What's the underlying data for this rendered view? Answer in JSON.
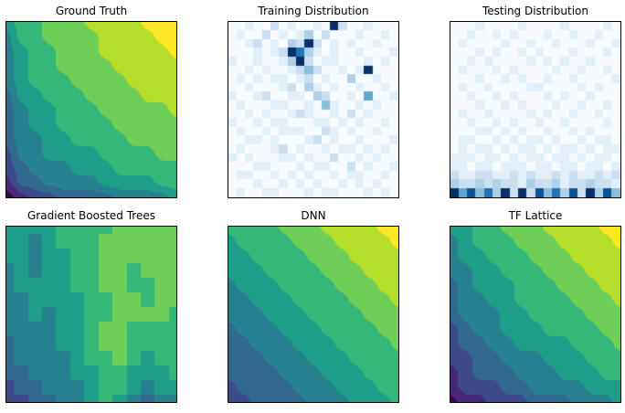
{
  "figure": {
    "background": "#ffffff",
    "panel_border_color": "#000000",
    "layout": "2 rows x 3 columns",
    "axis_ticks": "none"
  },
  "palettes": {
    "viridis": [
      "#440154",
      "#482878",
      "#3e4989",
      "#31688e",
      "#26828e",
      "#1f9e89",
      "#35b779",
      "#6ece58",
      "#b5de2b",
      "#fde725"
    ],
    "blues": [
      "#f7fbff",
      "#e2eef8",
      "#ccdff1",
      "#afd1e7",
      "#89bedc",
      "#60a6d2",
      "#3e8ec4",
      "#2172b6",
      "#0a549e",
      "#08306b"
    ]
  },
  "chart_data": [
    {
      "id": "ground-truth",
      "title": "Ground Truth",
      "type": "heatmap",
      "subtype": "filled-contour",
      "colormap": "viridis",
      "render": "smooth",
      "value_scale": [
        0,
        9
      ],
      "ticks": "none",
      "grid": [
        "5667778888999",
        "4667777888899",
        "4566777888889",
        "4566777788888",
        "4566677778888",
        "3556667777888",
        "3455666777778",
        "3455666677777",
        "3445566667777",
        "2445555666677",
        "2344455566666",
        "1334444555566",
        "0122333344445"
      ]
    },
    {
      "id": "training-distribution",
      "title": "Training Distribution",
      "type": "heatmap",
      "subtype": "2d-histogram",
      "colormap": "blues",
      "render": "cells",
      "value_scale": [
        0,
        9
      ],
      "ticks": "none",
      "grid": [
        "00100201001092001000",
        "01002010130200010010",
        "00120103292010100100",
        "00010129731010010001",
        "10010013920110001010",
        "00101001242001019000",
        "01010110120100300100",
        "00100012031010010010",
        "10012001103200105001",
        "01000110010410010100",
        "00101001210010201000",
        "10010110001101010010",
        "01001011100210100100",
        "00110100012010010001",
        "01000120100101101010",
        "10100011010020010100",
        "00011000101100201001",
        "01100101010010110010",
        "00010010101001010100",
        "01001100010110001010"
      ]
    },
    {
      "id": "testing-distribution",
      "title": "Testing Distribution",
      "type": "heatmap",
      "subtype": "2d-histogram",
      "colormap": "blues",
      "render": "cells",
      "value_scale": [
        0,
        9
      ],
      "ticks": "none",
      "grid": [
        "00010000100001000010",
        "00100101000100100100",
        "01000010010010001001",
        "00010100101000100010",
        "00101000010101001000",
        "01000101000010010010",
        "00010010100100100001",
        "01001000011000010100",
        "00100101000101001000",
        "00010010100010010010",
        "01001000010100100100",
        "00100101001001000010",
        "00011010100100101000",
        "01100101011010010110",
        "01011010110101101011",
        "11101101011011010110",
        "11011011101101101101",
        "21122112121121211212",
        "32232322132231223221",
        "95847392928473829384"
      ]
    },
    {
      "id": "gradient-boosted-trees",
      "title": "Gradient Boosted Trees",
      "type": "heatmap",
      "subtype": "filled-contour-blocky",
      "colormap": "viridis",
      "render": "nearest",
      "value_scale": [
        0,
        9
      ],
      "ticks": "none",
      "grid": [
        "5555666677777",
        "5545666777777",
        "5545566777777",
        "4545566776777",
        "4555566776677",
        "4455556677677",
        "4454556677776",
        "4444556776666",
        "3444556776666",
        "3444456676566",
        "3344455665556",
        "2334445665455",
        "2233445654344"
      ]
    },
    {
      "id": "dnn",
      "title": "DNN",
      "type": "heatmap",
      "subtype": "filled-contour",
      "colormap": "viridis",
      "render": "smooth",
      "value_scale": [
        0,
        9
      ],
      "ticks": "none",
      "grid": [
        "6666777888899",
        "5666677788889",
        "5566667778888",
        "5556666777888",
        "4555666677788",
        "4455566667778",
        "4445556666777",
        "3444555666677",
        "3344455566667",
        "3334445556666",
        "3333444555666",
        "2333344455566",
        "2233334445556"
      ]
    },
    {
      "id": "tf-lattice",
      "title": "TF Lattice",
      "type": "heatmap",
      "subtype": "filled-contour",
      "colormap": "viridis",
      "render": "smooth",
      "value_scale": [
        0,
        9
      ],
      "ticks": "none",
      "grid": [
        "5566777888899",
        "4566677788889",
        "4556667778888",
        "4455666777888",
        "3455566677788",
        "3445566667778",
        "3444556666777",
        "2344555666677",
        "2334455556667",
        "2233444555666",
        "1233344455566",
        "1222334444555",
        "0112223334445"
      ]
    }
  ]
}
